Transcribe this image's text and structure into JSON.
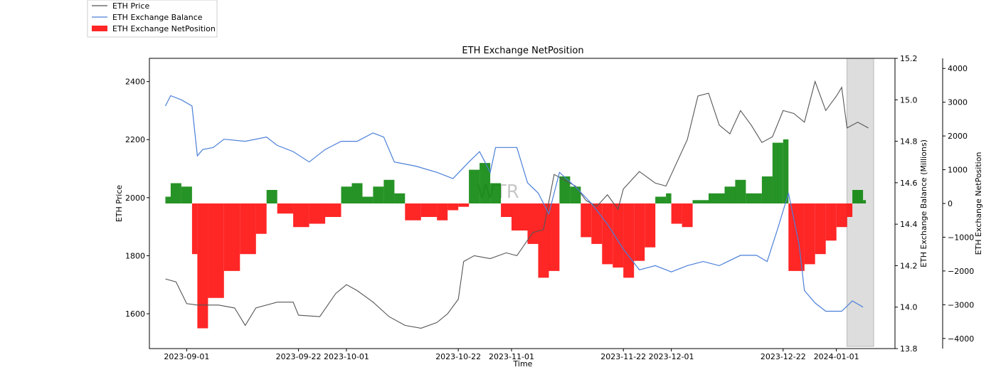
{
  "chart_data": {
    "type": "line+bar",
    "title": "ETH Exchange NetPosition",
    "watermark": "WTR",
    "xlabel": "Time",
    "ylabel_left": "ETH Price",
    "ylabel_right1": "ETH Exchange Balance (Millions)",
    "ylabel_right2": "ETH Exchange NetPosition",
    "x_range": [
      "2023-08-25",
      "2024-01-12"
    ],
    "x_ticks": [
      "2023-09-01",
      "2023-09-22",
      "2023-10-01",
      "2023-10-22",
      "2023-11-01",
      "2023-11-22",
      "2023-12-01",
      "2023-12-22",
      "2024-01-01"
    ],
    "price_ylim": [
      1480,
      2480
    ],
    "price_ticks": [
      "1600",
      "1800",
      "2000",
      "2200",
      "2400"
    ],
    "balance_ylim": [
      13.8,
      15.2
    ],
    "balance_ticks": [
      "13.8",
      "14.0",
      "14.2",
      "14.4",
      "14.6",
      "14.8",
      "15.0",
      "15.2"
    ],
    "netpos_ylim": [
      -4300,
      4300
    ],
    "netpos_ticks": [
      "−4000",
      "−3000",
      "−2000",
      "−1000",
      "0",
      "1000",
      "2000",
      "3000",
      "4000"
    ],
    "shaded_region": [
      "2024-01-03",
      "2024-01-08"
    ],
    "legend": [
      {
        "label": "ETH Price",
        "color": "#555555",
        "kind": "line"
      },
      {
        "label": "ETH Exchange Balance",
        "color": "#4a7fd8",
        "kind": "line"
      },
      {
        "label": "ETH Exchange NetPosition",
        "color": "#ff0000",
        "kind": "patch"
      }
    ],
    "colors": {
      "price": "#555555",
      "balance": "#4a7fd8",
      "positive": "#008000",
      "negative": "#ff0000",
      "shade": "#dddddd"
    },
    "series": [
      {
        "name": "ETH Price",
        "axis": "left",
        "points": [
          [
            "2023-08-28",
            1720
          ],
          [
            "2023-08-30",
            1710
          ],
          [
            "2023-09-01",
            1635
          ],
          [
            "2023-09-03",
            1630
          ],
          [
            "2023-09-07",
            1630
          ],
          [
            "2023-09-10",
            1620
          ],
          [
            "2023-09-12",
            1560
          ],
          [
            "2023-09-14",
            1620
          ],
          [
            "2023-09-18",
            1640
          ],
          [
            "2023-09-21",
            1640
          ],
          [
            "2023-09-22",
            1595
          ],
          [
            "2023-09-26",
            1590
          ],
          [
            "2023-09-29",
            1670
          ],
          [
            "2023-10-01",
            1700
          ],
          [
            "2023-10-03",
            1680
          ],
          [
            "2023-10-06",
            1640
          ],
          [
            "2023-10-09",
            1590
          ],
          [
            "2023-10-12",
            1560
          ],
          [
            "2023-10-15",
            1550
          ],
          [
            "2023-10-18",
            1570
          ],
          [
            "2023-10-20",
            1600
          ],
          [
            "2023-10-22",
            1650
          ],
          [
            "2023-10-23",
            1780
          ],
          [
            "2023-10-25",
            1800
          ],
          [
            "2023-10-28",
            1790
          ],
          [
            "2023-10-31",
            1810
          ],
          [
            "2023-11-02",
            1800
          ],
          [
            "2023-11-05",
            1880
          ],
          [
            "2023-11-07",
            1890
          ],
          [
            "2023-11-09",
            2080
          ],
          [
            "2023-11-11",
            2060
          ],
          [
            "2023-11-13",
            2040
          ],
          [
            "2023-11-15",
            1990
          ],
          [
            "2023-11-17",
            1970
          ],
          [
            "2023-11-19",
            2010
          ],
          [
            "2023-11-21",
            1960
          ],
          [
            "2023-11-22",
            2030
          ],
          [
            "2023-11-25",
            2090
          ],
          [
            "2023-11-28",
            2050
          ],
          [
            "2023-11-30",
            2040
          ],
          [
            "2023-12-01",
            2080
          ],
          [
            "2023-12-04",
            2200
          ],
          [
            "2023-12-06",
            2350
          ],
          [
            "2023-12-08",
            2360
          ],
          [
            "2023-12-10",
            2250
          ],
          [
            "2023-12-12",
            2220
          ],
          [
            "2023-12-14",
            2300
          ],
          [
            "2023-12-16",
            2250
          ],
          [
            "2023-12-18",
            2190
          ],
          [
            "2023-12-20",
            2210
          ],
          [
            "2023-12-22",
            2300
          ],
          [
            "2023-12-24",
            2290
          ],
          [
            "2023-12-26",
            2260
          ],
          [
            "2023-12-28",
            2400
          ],
          [
            "2023-12-30",
            2300
          ],
          [
            "2024-01-01",
            2350
          ],
          [
            "2024-01-02",
            2380
          ],
          [
            "2024-01-03",
            2240
          ],
          [
            "2024-01-05",
            2260
          ],
          [
            "2024-01-07",
            2240
          ]
        ]
      },
      {
        "name": "ETH Exchange Balance",
        "axis": "right1",
        "points": [
          [
            "2023-08-28",
            14.97
          ],
          [
            "2023-08-29",
            15.02
          ],
          [
            "2023-08-31",
            15.0
          ],
          [
            "2023-09-02",
            14.97
          ],
          [
            "2023-09-03",
            14.73
          ],
          [
            "2023-09-04",
            14.76
          ],
          [
            "2023-09-06",
            14.77
          ],
          [
            "2023-09-08",
            14.81
          ],
          [
            "2023-09-12",
            14.8
          ],
          [
            "2023-09-16",
            14.82
          ],
          [
            "2023-09-18",
            14.78
          ],
          [
            "2023-09-21",
            14.75
          ],
          [
            "2023-09-24",
            14.7
          ],
          [
            "2023-09-27",
            14.76
          ],
          [
            "2023-09-30",
            14.8
          ],
          [
            "2023-10-03",
            14.8
          ],
          [
            "2023-10-06",
            14.84
          ],
          [
            "2023-10-08",
            14.82
          ],
          [
            "2023-10-10",
            14.7
          ],
          [
            "2023-10-14",
            14.68
          ],
          [
            "2023-10-18",
            14.65
          ],
          [
            "2023-10-21",
            14.62
          ],
          [
            "2023-10-24",
            14.7
          ],
          [
            "2023-10-26",
            14.75
          ],
          [
            "2023-10-28",
            14.65
          ],
          [
            "2023-10-29",
            14.77
          ],
          [
            "2023-11-02",
            14.77
          ],
          [
            "2023-11-04",
            14.6
          ],
          [
            "2023-11-06",
            14.55
          ],
          [
            "2023-11-08",
            14.45
          ],
          [
            "2023-11-10",
            14.65
          ],
          [
            "2023-11-13",
            14.58
          ],
          [
            "2023-11-16",
            14.5
          ],
          [
            "2023-11-19",
            14.4
          ],
          [
            "2023-11-22",
            14.28
          ],
          [
            "2023-11-25",
            14.18
          ],
          [
            "2023-11-28",
            14.2
          ],
          [
            "2023-12-01",
            14.17
          ],
          [
            "2023-12-04",
            14.2
          ],
          [
            "2023-12-07",
            14.22
          ],
          [
            "2023-12-10",
            14.2
          ],
          [
            "2023-12-14",
            14.25
          ],
          [
            "2023-12-17",
            14.25
          ],
          [
            "2023-12-19",
            14.22
          ],
          [
            "2023-12-21",
            14.38
          ],
          [
            "2023-12-23",
            14.55
          ],
          [
            "2023-12-25",
            14.3
          ],
          [
            "2023-12-26",
            14.08
          ],
          [
            "2023-12-28",
            14.02
          ],
          [
            "2023-12-30",
            13.98
          ],
          [
            "2024-01-02",
            13.98
          ],
          [
            "2024-01-04",
            14.03
          ],
          [
            "2024-01-06",
            14.0
          ]
        ]
      },
      {
        "name": "ETH Exchange NetPosition",
        "axis": "right2",
        "points": [
          [
            "2023-08-28",
            200
          ],
          [
            "2023-08-29",
            600
          ],
          [
            "2023-08-31",
            500
          ],
          [
            "2023-09-02",
            -1500
          ],
          [
            "2023-09-03",
            -3700
          ],
          [
            "2023-09-05",
            -2800
          ],
          [
            "2023-09-08",
            -2000
          ],
          [
            "2023-09-11",
            -1500
          ],
          [
            "2023-09-14",
            -900
          ],
          [
            "2023-09-16",
            400
          ],
          [
            "2023-09-18",
            -300
          ],
          [
            "2023-09-21",
            -700
          ],
          [
            "2023-09-24",
            -600
          ],
          [
            "2023-09-27",
            -400
          ],
          [
            "2023-09-30",
            500
          ],
          [
            "2023-10-02",
            600
          ],
          [
            "2023-10-04",
            200
          ],
          [
            "2023-10-06",
            500
          ],
          [
            "2023-10-08",
            700
          ],
          [
            "2023-10-10",
            300
          ],
          [
            "2023-10-12",
            -500
          ],
          [
            "2023-10-15",
            -400
          ],
          [
            "2023-10-18",
            -500
          ],
          [
            "2023-10-20",
            -200
          ],
          [
            "2023-10-22",
            -100
          ],
          [
            "2023-10-24",
            1000
          ],
          [
            "2023-10-26",
            1200
          ],
          [
            "2023-10-28",
            600
          ],
          [
            "2023-10-30",
            -400
          ],
          [
            "2023-11-01",
            -800
          ],
          [
            "2023-11-04",
            -1200
          ],
          [
            "2023-11-06",
            -2200
          ],
          [
            "2023-11-08",
            -2000
          ],
          [
            "2023-11-10",
            800
          ],
          [
            "2023-11-12",
            500
          ],
          [
            "2023-11-14",
            -1000
          ],
          [
            "2023-11-16",
            -1200
          ],
          [
            "2023-11-18",
            -1800
          ],
          [
            "2023-11-20",
            -1900
          ],
          [
            "2023-11-22",
            -2200
          ],
          [
            "2023-11-24",
            -1700
          ],
          [
            "2023-11-26",
            -1300
          ],
          [
            "2023-11-28",
            200
          ],
          [
            "2023-11-30",
            300
          ],
          [
            "2023-12-01",
            -600
          ],
          [
            "2023-12-03",
            -700
          ],
          [
            "2023-12-05",
            100
          ],
          [
            "2023-12-08",
            300
          ],
          [
            "2023-12-11",
            500
          ],
          [
            "2023-12-13",
            700
          ],
          [
            "2023-12-15",
            300
          ],
          [
            "2023-12-18",
            800
          ],
          [
            "2023-12-20",
            1800
          ],
          [
            "2023-12-22",
            1900
          ],
          [
            "2023-12-23",
            -2000
          ],
          [
            "2023-12-26",
            -1800
          ],
          [
            "2023-12-28",
            -1500
          ],
          [
            "2023-12-30",
            -1100
          ],
          [
            "2024-01-01",
            -700
          ],
          [
            "2024-01-03",
            -400
          ],
          [
            "2024-01-04",
            400
          ],
          [
            "2024-01-06",
            100
          ]
        ]
      }
    ]
  }
}
